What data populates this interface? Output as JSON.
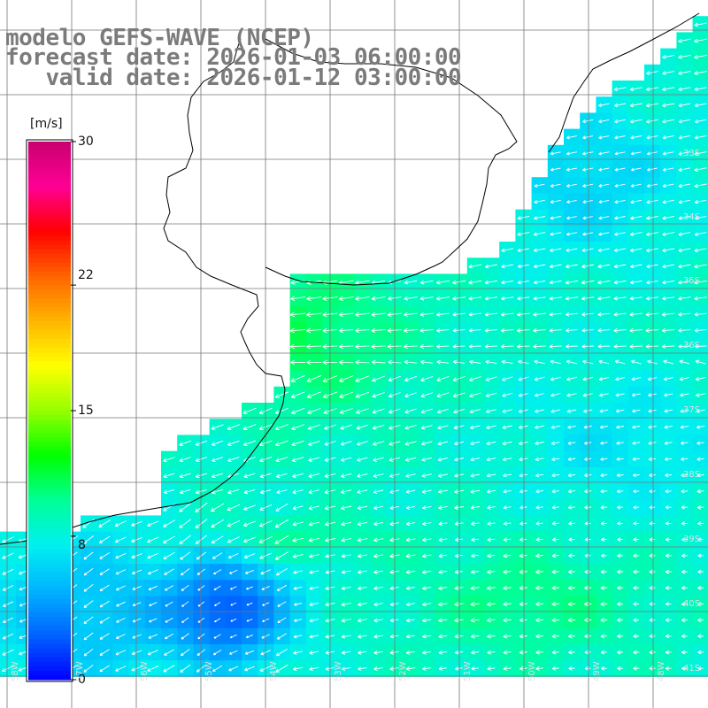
{
  "title": {
    "model": "modelo GEFS-WAVE (NCEP)",
    "forecast": "forecast date: 2026-01-03 06:00:00",
    "valid": "   valid date: 2026-01-12 03:00:00"
  },
  "colorbar": {
    "unit": "[m/s]",
    "ticks": [
      "30",
      "22",
      "15",
      "8",
      "0"
    ],
    "tick_values": [
      30,
      22,
      15,
      8,
      0
    ],
    "min": 0,
    "max": 30,
    "colors": [
      "#0000ff",
      "#0064ff",
      "#00b4ff",
      "#00f0f0",
      "#00ff96",
      "#00ff00",
      "#96ff00",
      "#ffff00",
      "#ffb400",
      "#ff6400",
      "#ff0000",
      "#ff0096",
      "#c8006e"
    ]
  },
  "grid": {
    "lat_labels": [
      "33S",
      "34S",
      "35S",
      "36S",
      "37S",
      "38S",
      "39S",
      "40S",
      "41S"
    ],
    "lon_labels": [
      "58W",
      "57W",
      "56W",
      "55W",
      "54W",
      "53W",
      "52W",
      "51W",
      "50W",
      "49W",
      "48W"
    ]
  }
}
